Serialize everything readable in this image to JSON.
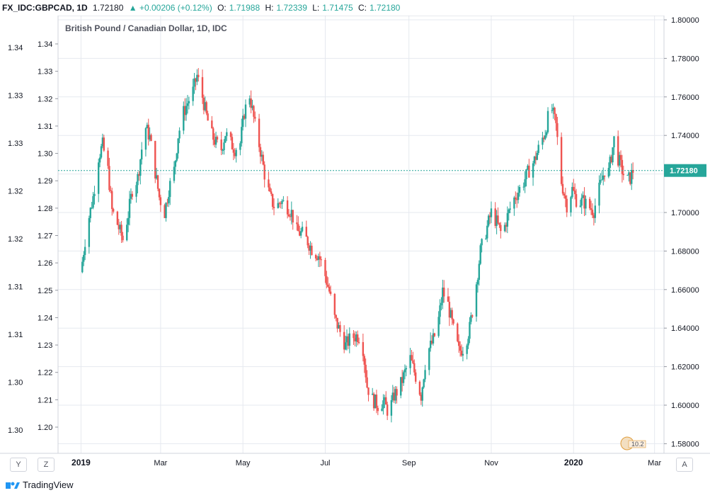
{
  "header": {
    "symbol": "FX_IDC:GBPCAD, 1D",
    "last": "1.72180",
    "change": "▲ +0.00206 (+0.12%)",
    "open_label": "O:",
    "open": "1.71988",
    "high_label": "H:",
    "high": "1.72339",
    "low_label": "L:",
    "low": "1.71475",
    "close_label": "C:",
    "close": "1.72180"
  },
  "chart_data": {
    "type": "candlestick",
    "title": "British Pound / Canadian Dollar, 1D, IDC",
    "x_ticks": [
      "2019",
      "Mar",
      "May",
      "Jul",
      "Sep",
      "Nov",
      "2020",
      "Mar"
    ],
    "y_right": {
      "ticks": [
        "1.80000",
        "1.78000",
        "1.76000",
        "1.74000",
        "1.72000",
        "1.70000",
        "1.68000",
        "1.66000",
        "1.64000",
        "1.62000",
        "1.60000",
        "1.58000"
      ],
      "range": [
        1.575,
        1.8
      ]
    },
    "y_mid_ticks": [
      "1.34",
      "1.33",
      "1.32",
      "1.31",
      "1.30",
      "1.29",
      "1.28",
      "1.27",
      "1.26",
      "1.25",
      "1.24",
      "1.23",
      "1.22",
      "1.21",
      "1.20"
    ],
    "y_left_ticks": [
      "1.34",
      "1.33",
      "1.33",
      "1.32",
      "1.32",
      "1.31",
      "1.31",
      "1.30",
      "1.30"
    ],
    "last_price": 1.7218,
    "last_price_label": "1.72180",
    "colors": {
      "up": "#26a69a",
      "down": "#ef5350",
      "grid": "#e6e9ef"
    },
    "close_path": [
      [
        "2019-01-01",
        1.669
      ],
      [
        "2019-01-05",
        1.691
      ],
      [
        "2019-01-10",
        1.708
      ],
      [
        "2019-01-14",
        1.729
      ],
      [
        "2019-01-17",
        1.735
      ],
      [
        "2019-01-21",
        1.722
      ],
      [
        "2019-01-24",
        1.701
      ],
      [
        "2019-01-28",
        1.694
      ],
      [
        "2019-02-01",
        1.686
      ],
      [
        "2019-02-05",
        1.699
      ],
      [
        "2019-02-08",
        1.712
      ],
      [
        "2019-02-12",
        1.718
      ],
      [
        "2019-02-15",
        1.733
      ],
      [
        "2019-02-18",
        1.744
      ],
      [
        "2019-02-21",
        1.739
      ],
      [
        "2019-02-25",
        1.721
      ],
      [
        "2019-02-28",
        1.708
      ],
      [
        "2019-03-04",
        1.7
      ],
      [
        "2019-03-07",
        1.712
      ],
      [
        "2019-03-11",
        1.722
      ],
      [
        "2019-03-14",
        1.74
      ],
      [
        "2019-03-18",
        1.752
      ],
      [
        "2019-03-21",
        1.757
      ],
      [
        "2019-03-25",
        1.763
      ],
      [
        "2019-03-28",
        1.771
      ],
      [
        "2019-04-01",
        1.76
      ],
      [
        "2019-04-04",
        1.75
      ],
      [
        "2019-04-08",
        1.74
      ],
      [
        "2019-04-11",
        1.736
      ],
      [
        "2019-04-15",
        1.733
      ],
      [
        "2019-04-18",
        1.741
      ],
      [
        "2019-04-22",
        1.736
      ],
      [
        "2019-04-25",
        1.733
      ],
      [
        "2019-04-29",
        1.736
      ],
      [
        "2019-05-02",
        1.752
      ],
      [
        "2019-05-06",
        1.761
      ],
      [
        "2019-05-10",
        1.745
      ],
      [
        "2019-05-14",
        1.732
      ],
      [
        "2019-05-17",
        1.72
      ],
      [
        "2019-05-21",
        1.708
      ],
      [
        "2019-05-25",
        1.702
      ],
      [
        "2019-05-29",
        1.706
      ],
      [
        "2019-06-02",
        1.704
      ],
      [
        "2019-06-06",
        1.7
      ],
      [
        "2019-06-10",
        1.69
      ],
      [
        "2019-06-14",
        1.689
      ],
      [
        "2019-06-18",
        1.685
      ],
      [
        "2019-06-22",
        1.68
      ],
      [
        "2019-06-26",
        1.678
      ],
      [
        "2019-06-30",
        1.67
      ],
      [
        "2019-07-04",
        1.659
      ],
      [
        "2019-07-08",
        1.645
      ],
      [
        "2019-07-12",
        1.638
      ],
      [
        "2019-07-16",
        1.631
      ],
      [
        "2019-07-20",
        1.635
      ],
      [
        "2019-07-24",
        1.636
      ],
      [
        "2019-07-28",
        1.636
      ],
      [
        "2019-08-01",
        1.61
      ],
      [
        "2019-08-05",
        1.603
      ],
      [
        "2019-08-09",
        1.6
      ],
      [
        "2019-08-13",
        1.602
      ],
      [
        "2019-08-17",
        1.596
      ],
      [
        "2019-08-21",
        1.605
      ],
      [
        "2019-08-25",
        1.609
      ],
      [
        "2019-08-29",
        1.617
      ],
      [
        "2019-09-02",
        1.624
      ],
      [
        "2019-09-06",
        1.615
      ],
      [
        "2019-09-10",
        1.605
      ],
      [
        "2019-09-14",
        1.627
      ],
      [
        "2019-09-18",
        1.632
      ],
      [
        "2019-09-22",
        1.64
      ],
      [
        "2019-09-26",
        1.659
      ],
      [
        "2019-09-30",
        1.652
      ],
      [
        "2019-10-04",
        1.639
      ],
      [
        "2019-10-08",
        1.628
      ],
      [
        "2019-10-12",
        1.63
      ],
      [
        "2019-10-16",
        1.64
      ],
      [
        "2019-10-20",
        1.658
      ],
      [
        "2019-10-24",
        1.68
      ],
      [
        "2019-10-28",
        1.69
      ],
      [
        "2019-11-01",
        1.7
      ],
      [
        "2019-11-05",
        1.695
      ],
      [
        "2019-11-09",
        1.688
      ],
      [
        "2019-11-13",
        1.698
      ],
      [
        "2019-11-17",
        1.706
      ],
      [
        "2019-11-21",
        1.711
      ],
      [
        "2019-11-25",
        1.716
      ],
      [
        "2019-11-29",
        1.722
      ],
      [
        "2019-12-03",
        1.727
      ],
      [
        "2019-12-07",
        1.735
      ],
      [
        "2019-12-11",
        1.742
      ],
      [
        "2019-12-15",
        1.756
      ],
      [
        "2019-12-19",
        1.745
      ],
      [
        "2019-12-23",
        1.716
      ],
      [
        "2019-12-27",
        1.704
      ],
      [
        "2019-12-31",
        1.712
      ],
      [
        "2020-01-04",
        1.705
      ],
      [
        "2020-01-08",
        1.706
      ],
      [
        "2020-01-12",
        1.703
      ],
      [
        "2020-01-16",
        1.701
      ],
      [
        "2020-01-20",
        1.712
      ],
      [
        "2020-01-24",
        1.722
      ],
      [
        "2020-01-27",
        1.721
      ],
      [
        "2020-01-31",
        1.738
      ],
      [
        "2020-02-03",
        1.728
      ],
      [
        "2020-02-06",
        1.722
      ],
      [
        "2020-02-09",
        1.716
      ],
      [
        "2020-02-12",
        1.718
      ],
      [
        "2020-02-14",
        1.7218
      ]
    ]
  },
  "watermark": {
    "badge_text": "10.2"
  },
  "footer": {
    "brand": "TradingView",
    "btn_y": "Y",
    "btn_z": "Z",
    "btn_a": "A"
  }
}
